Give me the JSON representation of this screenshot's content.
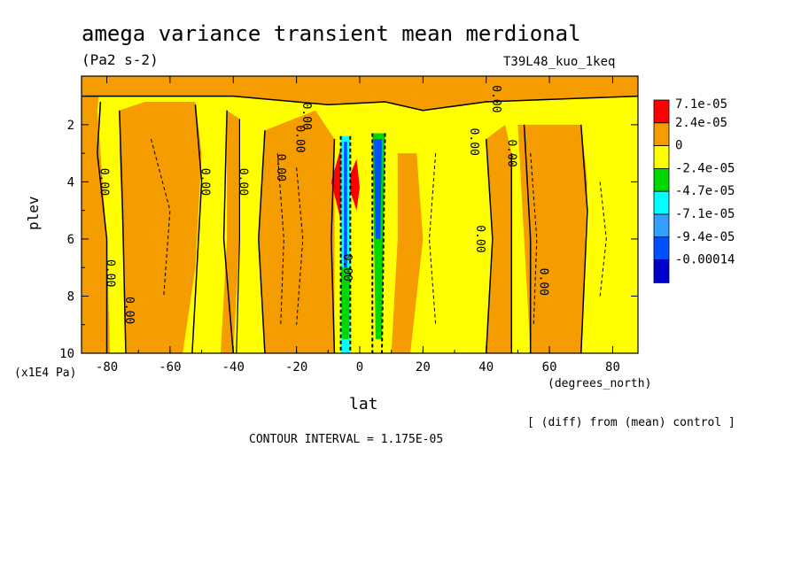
{
  "title": "amega variance transient mean merdional",
  "units": "(Pa2 s-2)",
  "run_label": "T39L48_kuo_1keq",
  "diff_note": "[ (diff) from (mean) control ]",
  "contour_interval": "CONTOUR INTERVAL = 1.175E-05",
  "chart_data": {
    "type": "heatmap",
    "title": "amega variance transient mean merdional",
    "xlabel": "lat",
    "xunits": "(degrees_north)",
    "ylabel": "plev",
    "yunits": "(x1E4 Pa)",
    "xlim": [
      -88,
      88
    ],
    "ylim": [
      10,
      0.3
    ],
    "xticks": [
      -80,
      -60,
      -40,
      -20,
      0,
      20,
      40,
      60,
      80
    ],
    "xtick_labels": [
      "-80",
      "-60",
      "-40",
      "-20",
      "0",
      "20",
      "40",
      "60",
      "80"
    ],
    "yticks": [
      2,
      4,
      6,
      8,
      10
    ],
    "ytick_labels": [
      "2",
      "4",
      "6",
      "8",
      "10"
    ],
    "contour_labels": [
      "0.00",
      "0.00",
      "0.00",
      "0.00",
      "0.00",
      "0.00",
      "0.00",
      "0.00",
      "0.00",
      "0.00",
      "0.00",
      "0.00",
      "0.00",
      "0.00"
    ],
    "legend": {
      "placement": "right",
      "levels": [
        "7.1e-05",
        "2.4e-05",
        "0",
        "-2.4e-05",
        "-4.7e-05",
        "-7.1e-05",
        "-9.4e-05",
        "-0.00014"
      ],
      "colors": [
        "#ff0000",
        "#f59c00",
        "#ffff00",
        "#00d800",
        "#00ffff",
        "#33a0ff",
        "#0050ff",
        "#0000cc"
      ]
    },
    "bands": [
      {
        "lat": [
          -88,
          -82
        ],
        "sign": "positive"
      },
      {
        "lat": [
          -82,
          -76
        ],
        "sign": "near-zero"
      },
      {
        "lat": [
          -76,
          -68
        ],
        "sign": "positive"
      },
      {
        "lat": [
          -68,
          -50
        ],
        "sign": "positive"
      },
      {
        "lat": [
          -50,
          -42
        ],
        "sign": "near-zero"
      },
      {
        "lat": [
          -42,
          -38
        ],
        "sign": "positive"
      },
      {
        "lat": [
          -38,
          -30
        ],
        "sign": "near-zero"
      },
      {
        "lat": [
          -30,
          -8
        ],
        "sign": "positive"
      },
      {
        "lat": [
          -8,
          -4
        ],
        "sign": "maximum"
      },
      {
        "lat": [
          -4,
          8
        ],
        "sign": "minimum"
      },
      {
        "lat": [
          8,
          40
        ],
        "sign": "near-zero"
      },
      {
        "lat": [
          40,
          48
        ],
        "sign": "positive"
      },
      {
        "lat": [
          48,
          72
        ],
        "sign": "positive"
      },
      {
        "lat": [
          72,
          88
        ],
        "sign": "near-zero"
      }
    ]
  }
}
